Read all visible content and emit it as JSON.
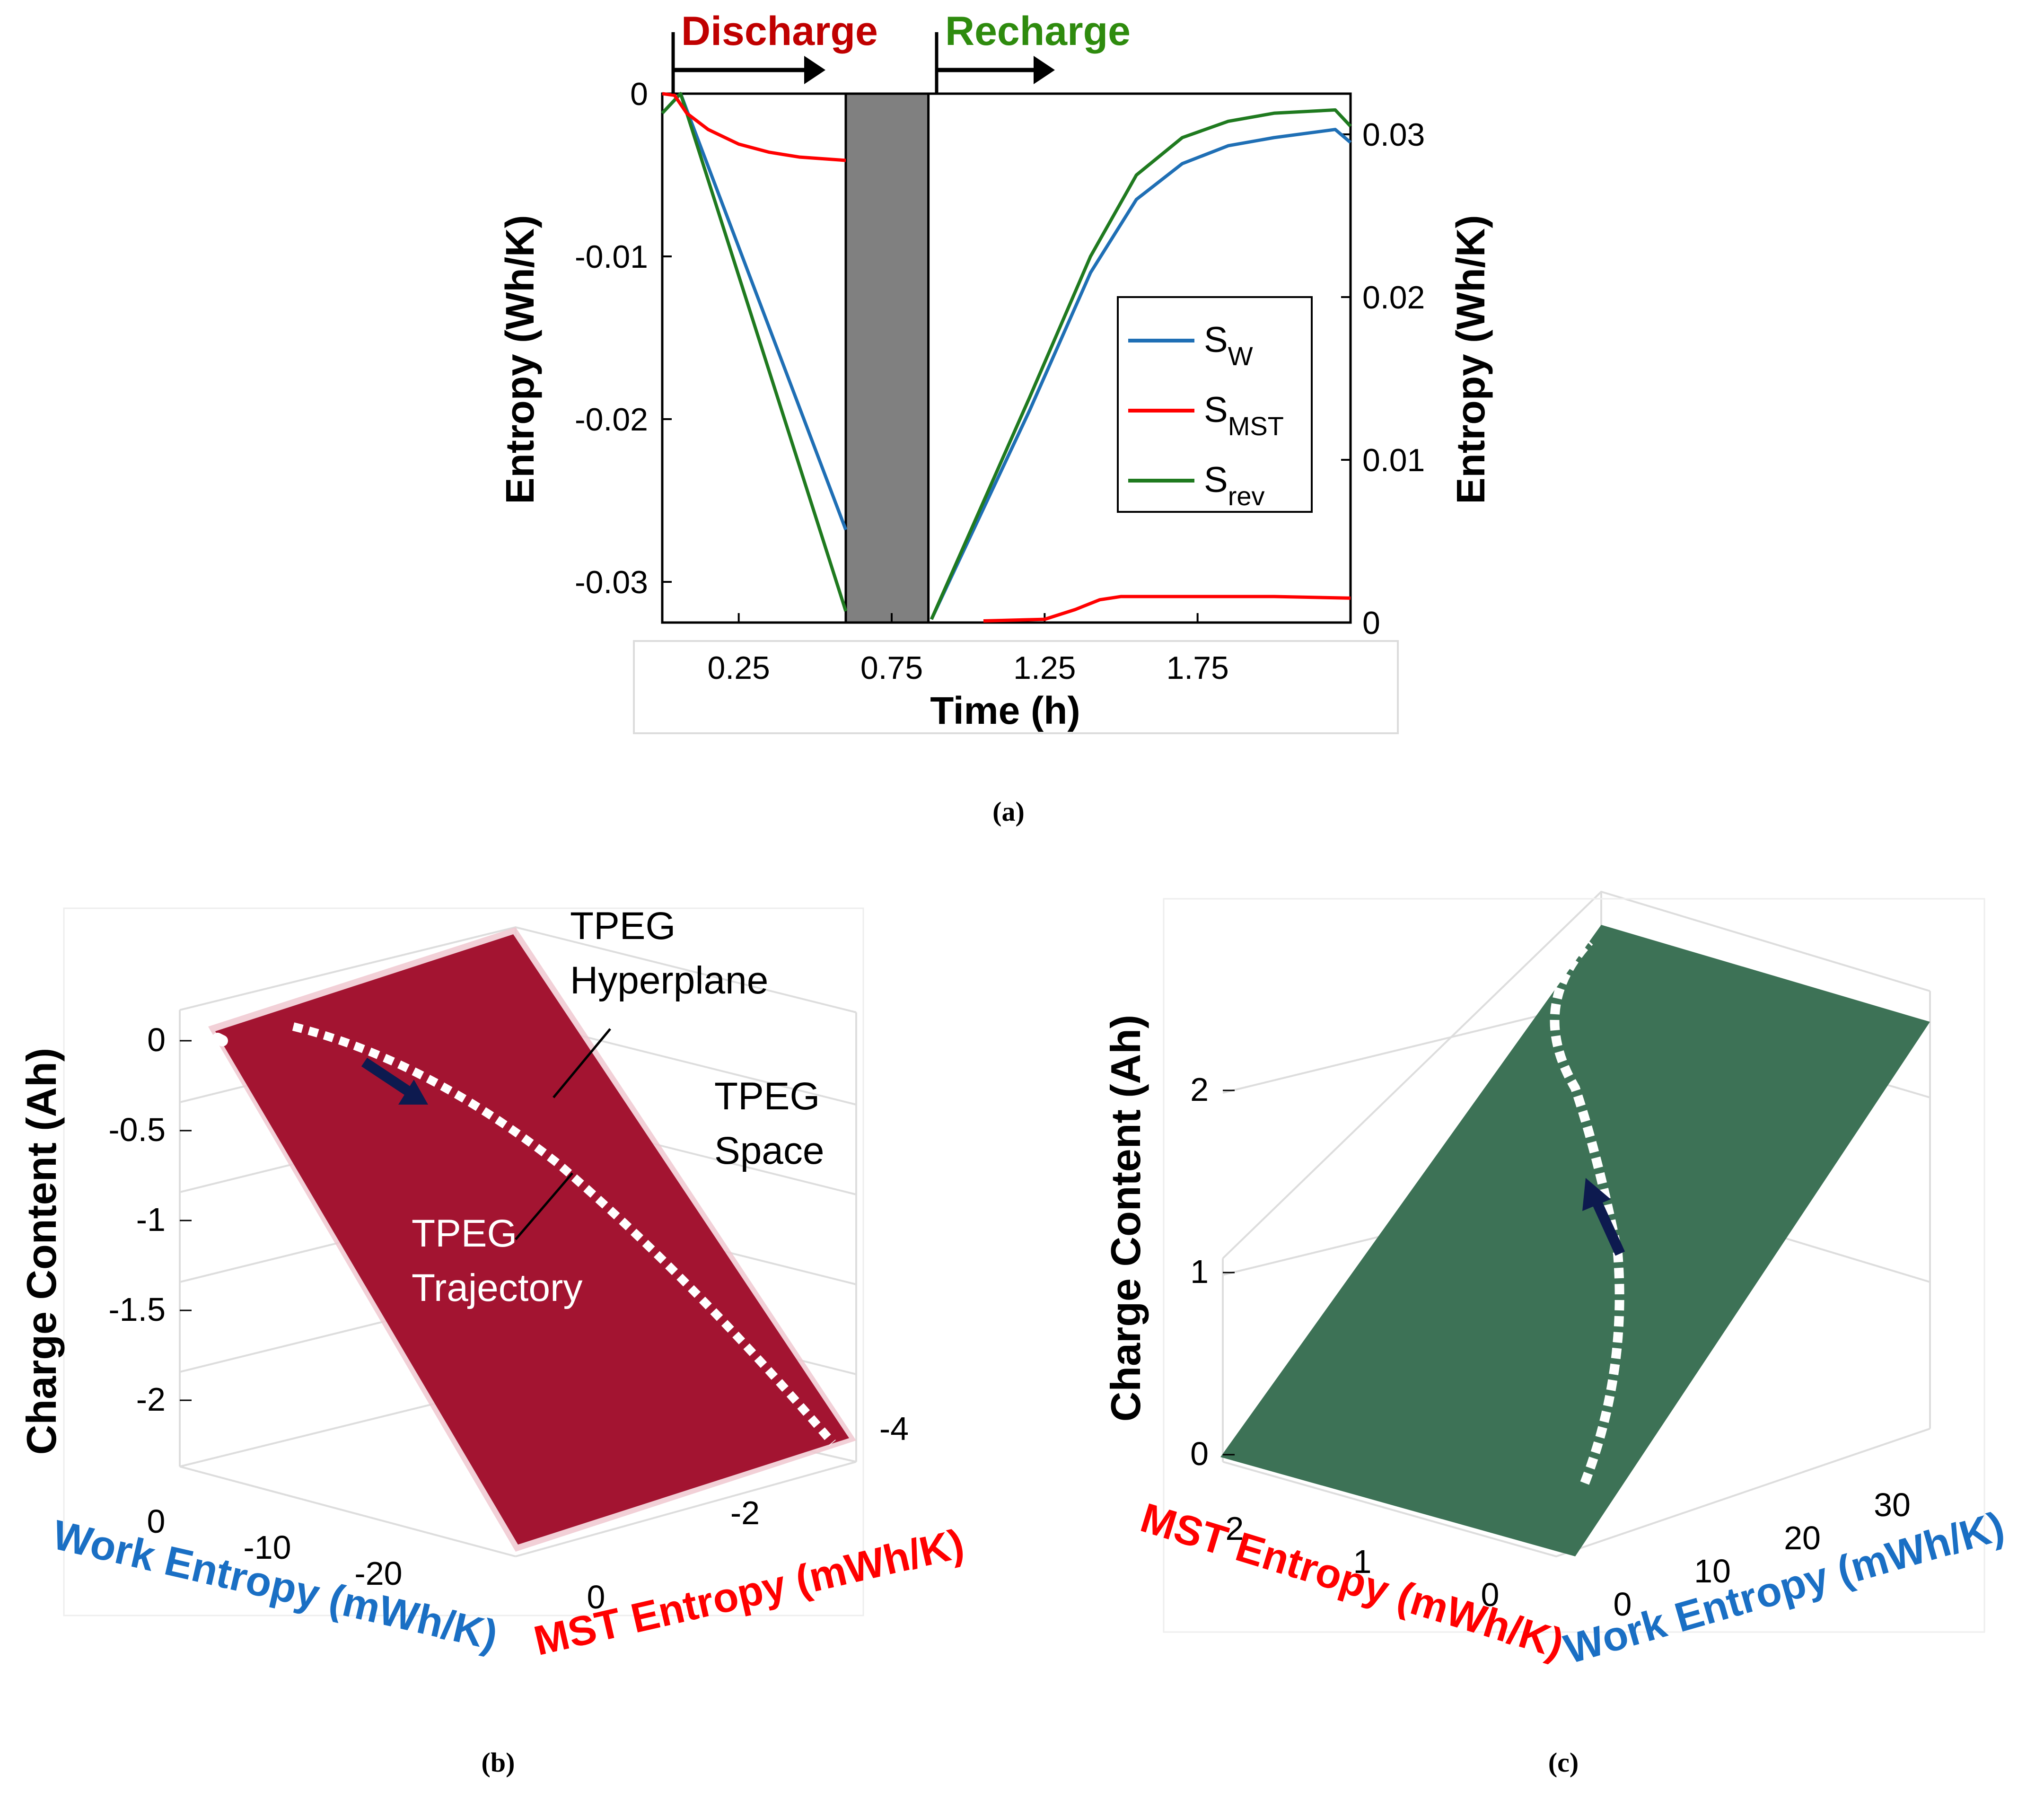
{
  "chart_data": [
    {
      "type": "line",
      "panel_label": "(a)",
      "xlabel": "Time (h)",
      "ylabel_left": "Entropy (Wh/K)",
      "ylabel_right": "Entropy (Wh/K)",
      "xlim": [
        0,
        2.25
      ],
      "ylim_left": [
        -0.0325,
        0
      ],
      "ylim_right": [
        0,
        0.0325
      ],
      "x_ticks": [
        "0.25",
        "0.75",
        "1.25",
        "1.75"
      ],
      "x_tick_values": [
        0.25,
        0.75,
        1.25,
        1.75
      ],
      "y_left_ticks": [
        "0",
        "-0.01",
        "-0.02",
        "-0.03"
      ],
      "y_left_tick_values": [
        0,
        -0.01,
        -0.02,
        -0.03
      ],
      "y_right_ticks": [
        "0.03",
        "0.02",
        "0.01",
        "0"
      ],
      "y_right_tick_values": [
        0.03,
        0.02,
        0.01,
        0
      ],
      "annotations": {
        "discharge": "Discharge",
        "recharge": "Recharge",
        "discharge_color": "#c00000",
        "recharge_color": "#2e8b0e"
      },
      "rest_band": {
        "x_start": 0.6,
        "x_end": 0.87,
        "color": "#808080"
      },
      "legend": {
        "position": "center-right",
        "entries": [
          {
            "base": "S",
            "sub": "W",
            "color": "#1f6fb5"
          },
          {
            "base": "S",
            "sub": "MST",
            "color": "#ff0000"
          },
          {
            "base": "S",
            "sub": "rev",
            "color": "#1f7a1f"
          }
        ]
      },
      "series": [
        {
          "name": "S_W discharge",
          "axis": "left",
          "color": "#1f6fb5",
          "x": [
            0,
            0.06,
            0.6
          ],
          "y": [
            -0.0012,
            0,
            -0.0268
          ]
        },
        {
          "name": "S_rev discharge",
          "axis": "left",
          "color": "#1f7a1f",
          "x": [
            0,
            0.06,
            0.6
          ],
          "y": [
            -0.0012,
            0,
            -0.0318
          ]
        },
        {
          "name": "S_MST discharge",
          "axis": "left",
          "color": "#ff0000",
          "x": [
            0,
            0.04,
            0.08,
            0.15,
            0.25,
            0.35,
            0.45,
            0.6
          ],
          "y": [
            0,
            -0.0001,
            -0.0012,
            -0.0022,
            -0.0031,
            -0.0036,
            -0.0039,
            -0.0041
          ]
        },
        {
          "name": "S_W recharge",
          "axis": "right",
          "color": "#1f6fb5",
          "x": [
            0.88,
            1.2,
            1.4,
            1.55,
            1.7,
            1.85,
            2.0,
            2.2,
            2.25
          ],
          "y": [
            0.0002,
            0.013,
            0.0215,
            0.026,
            0.0282,
            0.0293,
            0.0298,
            0.0303,
            0.0295
          ],
          "note": "blue curve (right axis) follows S_W shape"
        },
        {
          "name": "S_rev recharge",
          "axis": "right",
          "color": "#1f7a1f",
          "x": [
            0.88,
            1.2,
            1.4,
            1.55,
            1.7,
            1.85,
            2.0,
            2.2,
            2.25
          ],
          "y": [
            0.0002,
            0.0138,
            0.0225,
            0.0275,
            0.0298,
            0.0308,
            0.0313,
            0.0315,
            0.0305
          ]
        },
        {
          "name": "S_MST recharge",
          "axis": "right",
          "color": "#ff0000",
          "x": [
            1.05,
            1.25,
            1.35,
            1.43,
            1.5,
            1.75,
            2.0,
            2.25
          ],
          "y": [
            0.0001,
            0.0002,
            0.0008,
            0.0014,
            0.0016,
            0.0016,
            0.0016,
            0.0015
          ]
        }
      ]
    },
    {
      "type": "surface3d",
      "panel_label": "(b)",
      "zlabel": "Charge Content (Ah)",
      "xlabel": "Work Entropy (mWh/K)",
      "ylabel": "MST Entropy (mWh/K)",
      "xlabel_color": "#1a6fc4",
      "ylabel_color": "#ff0000",
      "surface_color": "#a31431",
      "z_ticks": [
        "0",
        "-0.5",
        "-1",
        "-1.5",
        "-2"
      ],
      "x_ticks": [
        "0",
        "-10",
        "-20"
      ],
      "y_ticks": [
        "0",
        "-2",
        "-4"
      ],
      "annotations": {
        "hyperplane": "TPEG Hyperplane",
        "hyperplane_line1": "TPEG",
        "hyperplane_line2": "Hyperplane",
        "space_line1": "TPEG",
        "space_line2": "Space",
        "trajectory_line1": "TPEG",
        "trajectory_line2": "Trajectory"
      }
    },
    {
      "type": "surface3d",
      "panel_label": "(c)",
      "zlabel": "Charge Content (Ah)",
      "xlabel": "MST Entropy (mWh/K)",
      "ylabel": "Work Entropy (mWh/K)",
      "xlabel_color": "#ff0000",
      "ylabel_color": "#1a6fc4",
      "surface_color": "#3d7256",
      "z_ticks": [
        "0",
        "1",
        "2"
      ],
      "x_ticks": [
        "2",
        "1",
        "0"
      ],
      "y_ticks": [
        "0",
        "10",
        "20",
        "30"
      ]
    }
  ]
}
